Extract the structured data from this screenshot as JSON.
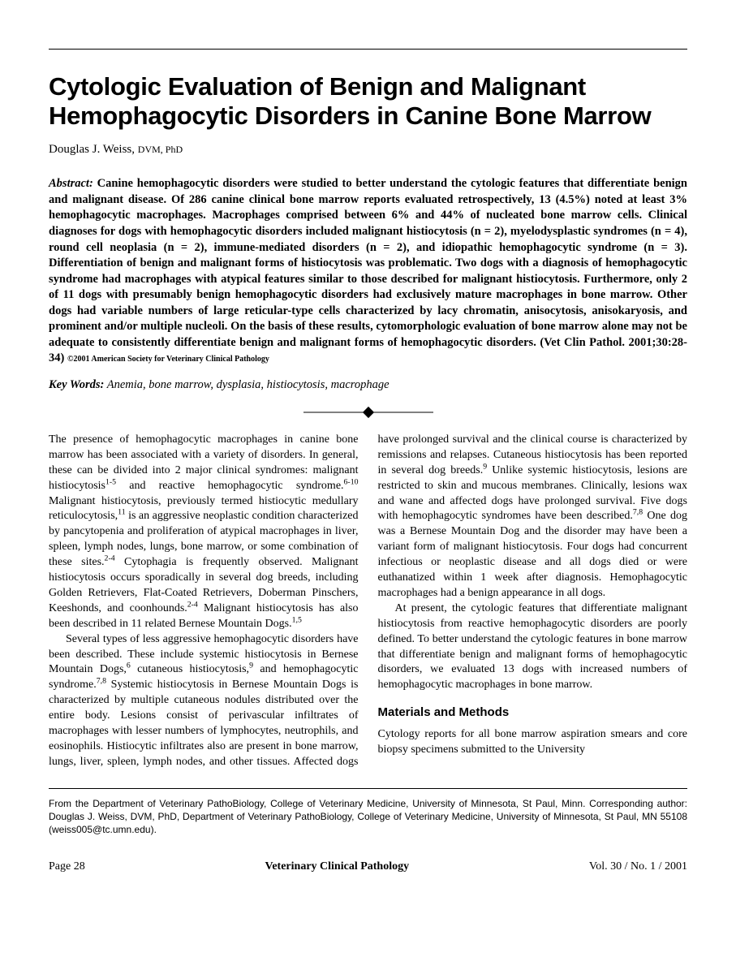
{
  "title": "Cytologic Evaluation of Benign and Malignant Hemophagocytic Disorders in Canine Bone Marrow",
  "author": {
    "name": "Douglas J. Weiss,",
    "credentials": "DVM, PhD"
  },
  "abstract": {
    "label": "Abstract:",
    "body": "Canine hemophagocytic disorders were studied to better understand the cytologic features that differentiate benign and malignant disease. Of 286 canine clinical bone marrow reports evaluated retrospectively, 13 (4.5%) noted at least 3% hemophagocytic macrophages. Macrophages comprised between 6% and 44% of nucleated bone marrow cells. Clinical diagnoses for dogs with hemophagocytic disorders included malignant histiocytosis (n = 2), myelodysplastic syndromes (n = 4), round cell neoplasia (n = 2), immune-mediated disorders (n = 2), and idiopathic hemophagocytic syndrome (n = 3). Differentiation of benign and malignant forms of histiocytosis was problematic. Two dogs with a diagnosis of hemophagocytic syndrome had macrophages with atypical features similar to those described for malignant histiocytosis. Furthermore, only 2 of 11 dogs with presumably benign hemophagocytic disorders had exclusively mature macrophages in bone marrow. Other dogs had variable numbers of large reticular-type cells characterized by lacy chromatin, anisocytosis, anisokaryosis, and prominent and/or multiple nucleoli. On the basis of these results, cytomorphologic evaluation of bone marrow alone may not be adequate to consistently differentiate benign and malignant forms of hemophagocytic disorders.",
    "citation": "(Vet Clin Pathol. 2001;30:28-34)",
    "copyright": "©2001 American Society for Veterinary Clinical Pathology"
  },
  "keywords": {
    "label": "Key Words:",
    "text": "Anemia, bone marrow, dysplasia, histiocytosis, macrophage"
  },
  "body": {
    "p1a": "The presence of hemophagocytic macrophages in canine bone marrow has been associated with a variety of disorders. In general, these can be divided into 2 major clinical syndromes: malignant histiocytosis",
    "p1b": " and reactive hemophagocytic syndrome.",
    "p1c": " Malignant histiocytosis, previously termed histiocytic medullary reticulocytosis,",
    "p1d": " is an aggressive neoplastic condition characterized by pancytopenia and proliferation of atypical macrophages in liver, spleen, lymph nodes, lungs, bone marrow, or some combination of these sites.",
    "p1e": " Cytophagia is frequently observed. Malignant histiocytosis occurs sporadically in several dog breeds, including Golden Retrievers, Flat-Coated Retrievers, Doberman Pinschers, Keeshonds, and coonhounds.",
    "p1f": " Malignant histiocytosis has also been described in 11 related Bernese Mountain Dogs.",
    "p2a": "Several types of less aggressive hemophagocytic disorders have been described. These include systemic histiocytosis in Bernese Mountain Dogs,",
    "p2b": " cutaneous histiocytosis,",
    "p2c": " and hemophagocytic syndrome.",
    "p2d": " Systemic histiocytosis in Bernese Mountain Dogs is characterized by multiple cutaneous nodules distributed over the entire body. Lesions consist of perivascular infiltrates of macrophages with lesser numbers of lymphocytes, neutrophils, and eosinophils. Histiocytic infiltrates also are present in bone marrow, lungs, liver, spleen, lymph nodes, and other tissues. Affected dogs have prolonged survival and the clinical course is characterized by remissions and relapses. Cutaneous histiocytosis has been reported in several dog breeds.",
    "p2e": " Unlike systemic histiocytosis, lesions are restricted to skin and mucous membranes. Clinically, lesions wax and wane and affected dogs have prolonged survival. Five dogs with hemophagocytic syndromes have been described.",
    "p2f": " One dog was a Bernese Mountain Dog and the disorder may have been a variant form of malignant histiocytosis. Four dogs had concurrent infectious or neoplastic disease and all dogs died or were euthanatized within 1 week after diagnosis. Hemophagocytic macrophages had a benign appearance in all dogs.",
    "p3": "At present, the cytologic features that differentiate malignant histiocytosis from reactive hemophagocytic disorders are poorly defined. To better understand the cytologic features in bone marrow that differentiate benign and malignant forms of hemophagocytic disorders, we evaluated 13 dogs with increased numbers of hemophagocytic macrophages in bone marrow.",
    "methods_heading": "Materials and Methods",
    "p4": "Cytology reports for all bone marrow aspiration smears and core biopsy specimens submitted to the University"
  },
  "refs": {
    "r1_5": "1-5",
    "r6_10": "6-10",
    "r11": "11",
    "r2_4": "2-4",
    "r1c5": "1,5",
    "r6": "6",
    "r9": "9",
    "r7_8": "7,8"
  },
  "affiliation": "From the Department of Veterinary PathoBiology, College of Veterinary Medicine, University of Minnesota, St Paul, Minn. Corresponding author: Douglas J. Weiss, DVM, PhD, Department of Veterinary PathoBiology, College of Veterinary Medicine, University of Minnesota, St Paul, MN 55108 (weiss005@tc.umn.edu).",
  "footer": {
    "page": "Page 28",
    "journal": "Veterinary Clinical Pathology",
    "issue": "Vol. 30 / No. 1 / 2001"
  }
}
